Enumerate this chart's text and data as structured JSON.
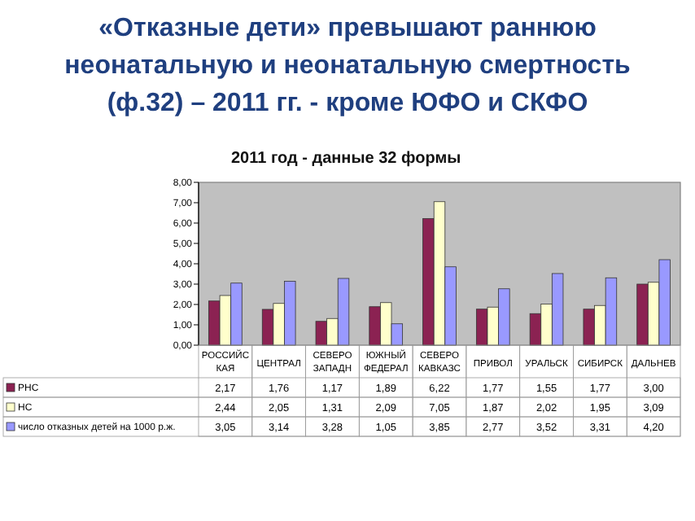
{
  "chart_data": {
    "type": "bar",
    "title": "«Отказные дети»  превышают  раннюю\nнеонатальную и неонатальную смертность\n(ф.32) – 2011 гг. -  кроме ЮФО и СКФО",
    "subtitle": "2011 год - данные 32 формы",
    "categories": [
      "РОССИЙС\nКАЯ",
      "ЦЕНТРАЛ",
      "СЕВЕРО\nЗАПАДН",
      "ЮЖНЫЙ\nФЕДЕРАЛ",
      "СЕВЕРО\nКАВКАЗС",
      "ПРИВОЛ",
      "УРАЛЬСК",
      "СИБИРСК",
      "ДАЛЬНЕВ"
    ],
    "series": [
      {
        "name": "РНС",
        "color": "#8b2252",
        "values": [
          2.17,
          1.76,
          1.17,
          1.89,
          6.22,
          1.77,
          1.55,
          1.77,
          3.0
        ],
        "value_labels": [
          "2,17",
          "1,76",
          "1,17",
          "1,89",
          "6,22",
          "1,77",
          "1,55",
          "1,77",
          "3,00"
        ]
      },
      {
        "name": "НС",
        "color": "#ffffcc",
        "values": [
          2.44,
          2.05,
          1.31,
          2.09,
          7.05,
          1.87,
          2.02,
          1.95,
          3.09
        ],
        "value_labels": [
          "2,44",
          "2,05",
          "1,31",
          "2,09",
          "7,05",
          "1,87",
          "2,02",
          "1,95",
          "3,09"
        ]
      },
      {
        "name": "число отказных детей на 1000 р.ж.",
        "color": "#9999ff",
        "values": [
          3.05,
          3.14,
          3.28,
          1.05,
          3.85,
          2.77,
          3.52,
          3.31,
          4.2
        ],
        "value_labels": [
          "3,05",
          "3,14",
          "3,28",
          "1,05",
          "3,85",
          "2,77",
          "3,52",
          "3,31",
          "4,20"
        ]
      }
    ],
    "ylim": [
      0,
      8
    ],
    "yticks": [
      {
        "value": 0,
        "label": "0,00"
      },
      {
        "value": 1,
        "label": "1,00"
      },
      {
        "value": 2,
        "label": "2,00"
      },
      {
        "value": 3,
        "label": "3,00"
      },
      {
        "value": 4,
        "label": "4,00"
      },
      {
        "value": 5,
        "label": "5,00"
      },
      {
        "value": 6,
        "label": "6,00"
      },
      {
        "value": 7,
        "label": "7,00"
      },
      {
        "value": 8,
        "label": "8,00"
      }
    ],
    "grid": false,
    "legend": "bottom"
  }
}
